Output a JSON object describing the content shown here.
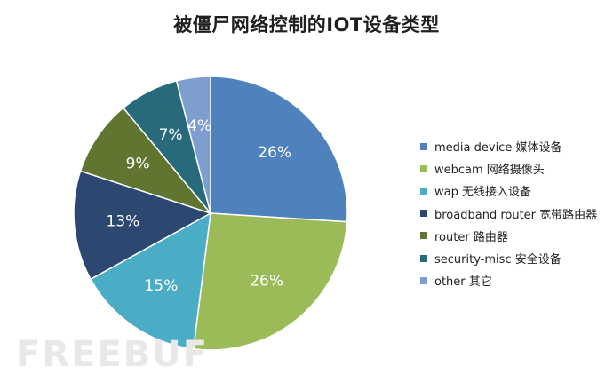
{
  "chart_data": {
    "type": "pie",
    "title": "被僵尸网络控制的IOT设备类型",
    "slices": [
      {
        "label": "media device 媒体设备",
        "value": 26,
        "value_label": "26%",
        "color": "#4f81bd"
      },
      {
        "label": "webcam 网络摄像头",
        "value": 26,
        "value_label": "26%",
        "color": "#9bbb59"
      },
      {
        "label": "wap 无线接入设备",
        "value": 15,
        "value_label": "15%",
        "color": "#4bacc6"
      },
      {
        "label": "broadband router 宽带路由器",
        "value": 13,
        "value_label": "13%",
        "color": "#2c4770"
      },
      {
        "label": "router 路由器",
        "value": 9,
        "value_label": "9%",
        "color": "#5f7530"
      },
      {
        "label": "security-misc 安全设备",
        "value": 7,
        "value_label": "7%",
        "color": "#276a7c"
      },
      {
        "label": "other 其它",
        "value": 4,
        "value_label": "4%",
        "color": "#7f9ed0"
      }
    ],
    "start_angle_deg": 0,
    "direction": "clockwise",
    "legend_position": "right"
  },
  "watermark": "FREEBUF"
}
